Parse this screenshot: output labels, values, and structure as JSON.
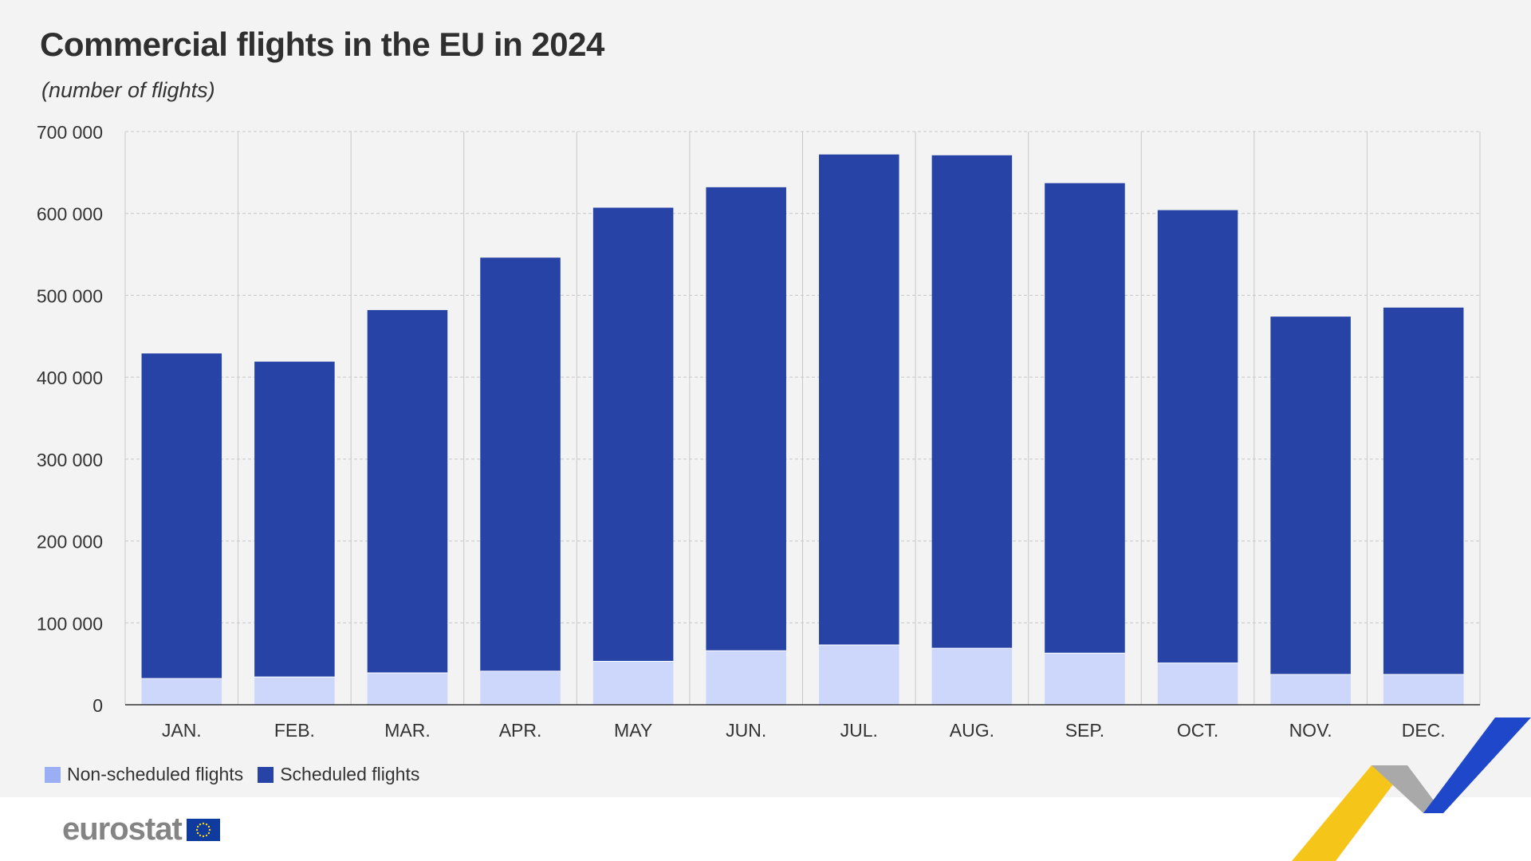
{
  "title": "Commercial flights in the EU in 2024",
  "subtitle": "(number of flights)",
  "logo_text": "eurostat",
  "colors": {
    "scheduled": "#2743a6",
    "non_scheduled": "#cdd7fb",
    "non_scheduled_legend": "#9aaef5",
    "grid": "#c8c8c8",
    "axis": "#333333",
    "accent_yellow": "#f6c51a",
    "accent_grey": "#a9a9a9",
    "accent_blue": "#1f47c9"
  },
  "legend": [
    {
      "label": "Non-scheduled flights",
      "color": "#9aaef5"
    },
    {
      "label": "Scheduled flights",
      "color": "#2743a6"
    }
  ],
  "chart_data": {
    "type": "bar",
    "stacked": true,
    "categories": [
      "JAN.",
      "FEB.",
      "MAR.",
      "APR.",
      "MAY",
      "JUN.",
      "JUL.",
      "AUG.",
      "SEP.",
      "OCT.",
      "NOV.",
      "DEC."
    ],
    "series": [
      {
        "name": "Non-scheduled flights",
        "values": [
          32000,
          34000,
          39000,
          41000,
          53000,
          66000,
          73000,
          69000,
          63000,
          51000,
          37000,
          37000
        ]
      },
      {
        "name": "Scheduled flights",
        "values": [
          397000,
          385000,
          443000,
          505000,
          554000,
          566000,
          599000,
          602000,
          574000,
          553000,
          437000,
          448000
        ]
      }
    ],
    "ylim": [
      0,
      700000
    ],
    "yticks": [
      0,
      100000,
      200000,
      300000,
      400000,
      500000,
      600000,
      700000
    ],
    "ytick_labels": [
      "0",
      "100 000",
      "200 000",
      "300 000",
      "400 000",
      "500 000",
      "600 000",
      "700 000"
    ],
    "grid": true,
    "legend_position": "bottom-left"
  }
}
